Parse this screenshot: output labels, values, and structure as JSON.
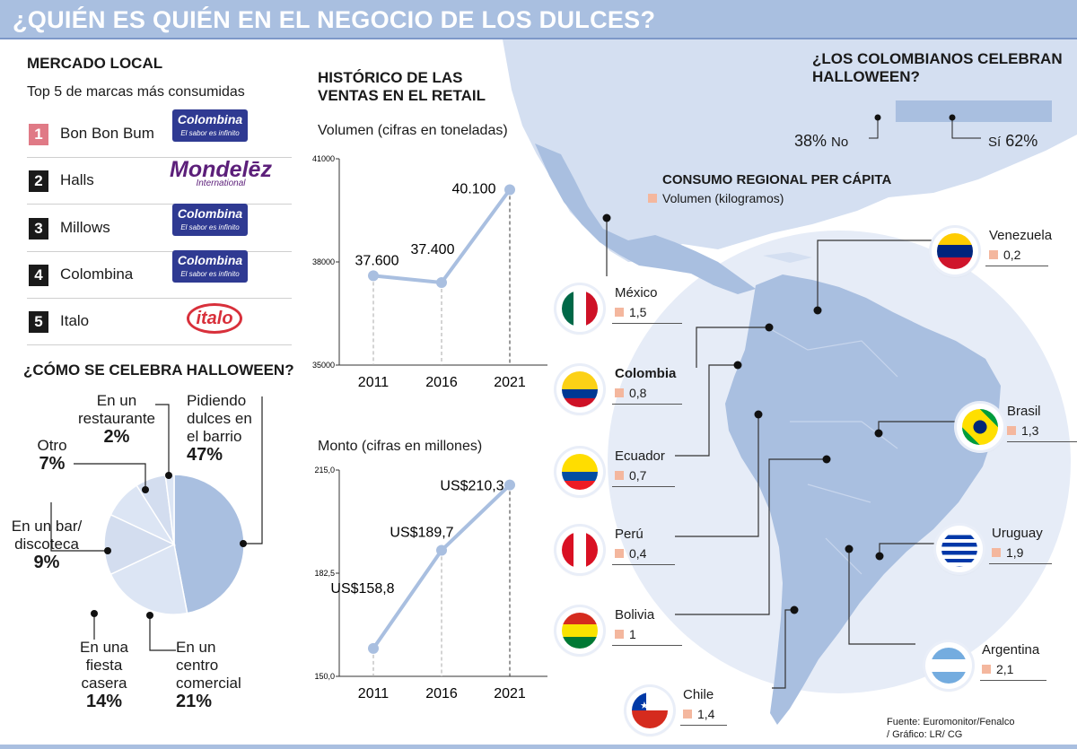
{
  "title": "¿QUIÉN ES QUIÉN EN EL NEGOCIO DE LOS DULCES?",
  "mercado": {
    "heading": "MERCADO LOCAL",
    "subheading": "Top 5 de marcas más consumidas",
    "brands": [
      {
        "rank": "1",
        "name": "Bon Bon Bum",
        "logo": "Colombina",
        "logo_tag": "El sabor es infinito"
      },
      {
        "rank": "2",
        "name": "Halls",
        "logo": "Mondelēz",
        "logo_tag": "International"
      },
      {
        "rank": "3",
        "name": "Millows",
        "logo": "Colombina",
        "logo_tag": "El sabor es infinito"
      },
      {
        "rank": "4",
        "name": "Colombina",
        "logo": "Colombina",
        "logo_tag": "El sabor es infinito"
      },
      {
        "rank": "5",
        "name": "Italo",
        "logo": "italo",
        "logo_tag": ""
      }
    ],
    "rank_colors": {
      "first": "#e07a86",
      "other": "#1a1a1a"
    }
  },
  "halloween_como": {
    "heading": "¿CÓMO SE CELEBRA HALLOWEEN?",
    "slices": [
      {
        "l1": "Pidiendo",
        "l2": "dulces en",
        "l3": "el barrio",
        "pct": "47%"
      },
      {
        "l1": "En un",
        "l2": "centro",
        "l3": "comercial",
        "pct": "21%"
      },
      {
        "l1": "En una",
        "l2": "fiesta",
        "l3": "casera",
        "pct": "14%"
      },
      {
        "l1": "En un bar/",
        "l2": "discoteca",
        "l3": "",
        "pct": "9%"
      },
      {
        "l1": "Otro",
        "l2": "",
        "l3": "",
        "pct": "7%"
      },
      {
        "l1": "En un",
        "l2": "restaurante",
        "l3": "",
        "pct": "2%"
      }
    ]
  },
  "historico": {
    "heading_line1": "HISTÓRICO DE LAS",
    "heading_line2": "VENTAS EN EL RETAIL",
    "volumen_title": "Volumen (cifras en toneladas)",
    "monto_title": "Monto (cifras en millones)"
  },
  "halloween_si": {
    "heading_line1": "¿LOS COLOMBIANOS CELEBRAN",
    "heading_line2": "HALLOWEEN?",
    "no_pct": "38%",
    "no_label": "No",
    "si_label": "Sí",
    "si_pct": "62%"
  },
  "consumo": {
    "heading": "CONSUMO REGIONAL PER CÁPITA",
    "legend": "Volumen (kilogramos)",
    "countries": [
      {
        "name": "México",
        "value": "1,5"
      },
      {
        "name": "Colombia",
        "value": "0,8"
      },
      {
        "name": "Ecuador",
        "value": "0,7"
      },
      {
        "name": "Perú",
        "value": "0,4"
      },
      {
        "name": "Bolivia",
        "value": "1"
      },
      {
        "name": "Chile",
        "value": "1,4"
      },
      {
        "name": "Venezuela",
        "value": "0,2"
      },
      {
        "name": "Brasil",
        "value": "1,3"
      },
      {
        "name": "Uruguay",
        "value": "1,9"
      },
      {
        "name": "Argentina",
        "value": "2,1"
      }
    ]
  },
  "source_line1": "Fuente: Euromonitor/Fenalco",
  "source_line2": "/ Gráfico: LR/ CG",
  "colors": {
    "accent_blue": "#a9bfe0",
    "line_blue": "#9db5df",
    "legend_salmon": "#f4b79e"
  },
  "chart_data": [
    {
      "type": "line",
      "x": [
        2011,
        2016,
        2021
      ],
      "values": [
        37600,
        37400,
        40100
      ],
      "value_labels": [
        "37.600",
        "37.400",
        "40.100"
      ],
      "xtick_labels": [
        "2011",
        "2016",
        "2021"
      ],
      "ytick_labels": [
        "41000",
        "38000",
        "35000"
      ],
      "ylim": [
        35000,
        41000
      ],
      "title": "Volumen (cifras en toneladas)"
    },
    {
      "type": "line",
      "x": [
        2011,
        2016,
        2021
      ],
      "values": [
        158.8,
        189.7,
        210.3
      ],
      "value_labels": [
        "US$158,8",
        "US$189,7",
        "US$210,3"
      ],
      "xtick_labels": [
        "2011",
        "2016",
        "2021"
      ],
      "ytick_labels": [
        "215,0",
        "182,5",
        "150,0"
      ],
      "ylim": [
        150,
        215
      ],
      "title": "Monto (cifras en millones)"
    },
    {
      "type": "pie",
      "categories": [
        "Pidiendo dulces en el barrio",
        "En un centro comercial",
        "En una fiesta casera",
        "En un bar/ discoteca",
        "Otro",
        "En un restaurante"
      ],
      "values": [
        47,
        21,
        14,
        9,
        7,
        2
      ],
      "title": "¿CÓMO SE CELEBRA HALLOWEEN?"
    },
    {
      "type": "bar",
      "categories": [
        "No",
        "Sí"
      ],
      "values": [
        38,
        62
      ],
      "title": "¿LOS COLOMBIANOS CELEBRAN HALLOWEEN?"
    },
    {
      "type": "bar",
      "categories": [
        "México",
        "Colombia",
        "Ecuador",
        "Perú",
        "Bolivia",
        "Chile",
        "Venezuela",
        "Brasil",
        "Uruguay",
        "Argentina"
      ],
      "values": [
        1.5,
        0.8,
        0.7,
        0.4,
        1,
        1.4,
        0.2,
        1.3,
        1.9,
        2.1
      ],
      "title": "CONSUMO REGIONAL PER CÁPITA",
      "ylabel": "Volumen (kilogramos)"
    }
  ]
}
